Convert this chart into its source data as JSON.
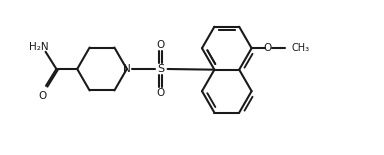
{
  "bg_color": "#ffffff",
  "line_color": "#1a1a1a",
  "line_width": 1.5,
  "figsize": [
    3.84,
    1.55
  ],
  "dpi": 100,
  "xlim": [
    0,
    9.6
  ],
  "ylim": [
    0,
    3.875
  ]
}
